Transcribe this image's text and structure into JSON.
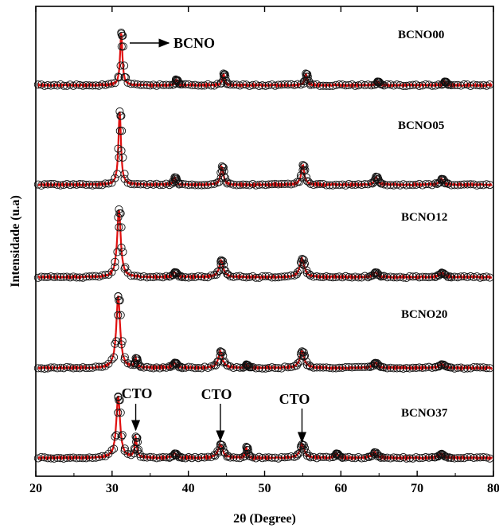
{
  "chart_data": {
    "type": "line",
    "xlabel": "2θ (Degree)",
    "ylabel": "Intensidade (u.a)",
    "xlim": [
      20,
      80
    ],
    "xticks": [
      20,
      30,
      40,
      50,
      60,
      70,
      80
    ],
    "grid": false,
    "colors": {
      "fit_line": "#e01010",
      "observed_markers": "#111111",
      "axis": "#000000"
    },
    "series": [
      {
        "name": "BCNO00",
        "peaks": [
          {
            "x": 31.2,
            "h": 1.0,
            "w": 0.18
          },
          {
            "x": 38.4,
            "h": 0.1,
            "w": 0.18
          },
          {
            "x": 44.6,
            "h": 0.22,
            "w": 0.18
          },
          {
            "x": 55.4,
            "h": 0.22,
            "w": 0.18
          },
          {
            "x": 64.8,
            "h": 0.07,
            "w": 0.2
          },
          {
            "x": 73.6,
            "h": 0.07,
            "w": 0.2
          }
        ]
      },
      {
        "name": "BCNO05",
        "peaks": [
          {
            "x": 31.0,
            "h": 1.0,
            "w": 0.2
          },
          {
            "x": 38.2,
            "h": 0.1,
            "w": 0.2
          },
          {
            "x": 44.4,
            "h": 0.25,
            "w": 0.22
          },
          {
            "x": 55.0,
            "h": 0.27,
            "w": 0.25
          },
          {
            "x": 64.6,
            "h": 0.11,
            "w": 0.25
          },
          {
            "x": 73.2,
            "h": 0.08,
            "w": 0.3
          }
        ]
      },
      {
        "name": "BCNO12",
        "peaks": [
          {
            "x": 30.9,
            "h": 1.0,
            "w": 0.28
          },
          {
            "x": 38.2,
            "h": 0.07,
            "w": 0.3
          },
          {
            "x": 44.3,
            "h": 0.25,
            "w": 0.32
          },
          {
            "x": 54.9,
            "h": 0.27,
            "w": 0.35
          },
          {
            "x": 64.5,
            "h": 0.07,
            "w": 0.35
          },
          {
            "x": 73.2,
            "h": 0.06,
            "w": 0.4
          }
        ]
      },
      {
        "name": "BCNO20",
        "peaks": [
          {
            "x": 30.8,
            "h": 1.0,
            "w": 0.3
          },
          {
            "x": 33.1,
            "h": 0.12,
            "w": 0.16
          },
          {
            "x": 38.2,
            "h": 0.07,
            "w": 0.3
          },
          {
            "x": 44.2,
            "h": 0.23,
            "w": 0.32
          },
          {
            "x": 47.6,
            "h": 0.04,
            "w": 0.2
          },
          {
            "x": 54.9,
            "h": 0.23,
            "w": 0.35
          },
          {
            "x": 64.5,
            "h": 0.07,
            "w": 0.35
          },
          {
            "x": 73.2,
            "h": 0.05,
            "w": 0.4
          }
        ]
      },
      {
        "name": "BCNO37",
        "peaks": [
          {
            "x": 30.8,
            "h": 1.0,
            "w": 0.3
          },
          {
            "x": 33.1,
            "h": 0.33,
            "w": 0.16
          },
          {
            "x": 38.2,
            "h": 0.07,
            "w": 0.3
          },
          {
            "x": 44.2,
            "h": 0.22,
            "w": 0.35
          },
          {
            "x": 47.6,
            "h": 0.17,
            "w": 0.14
          },
          {
            "x": 54.9,
            "h": 0.22,
            "w": 0.35
          },
          {
            "x": 59.4,
            "h": 0.07,
            "w": 0.25
          },
          {
            "x": 64.4,
            "h": 0.09,
            "w": 0.35
          },
          {
            "x": 73.1,
            "h": 0.06,
            "w": 0.4
          }
        ]
      }
    ],
    "annotations": [
      {
        "text": "BCNO",
        "series": "BCNO00",
        "peak_x": 31.2
      },
      {
        "text": "CTO",
        "series": "BCNO37",
        "peak_x": 33.1
      },
      {
        "text": "CTO",
        "series": "BCNO37",
        "peak_x": 44.2
      },
      {
        "text": "CTO",
        "series": "BCNO37",
        "peak_x": 54.9
      }
    ]
  }
}
